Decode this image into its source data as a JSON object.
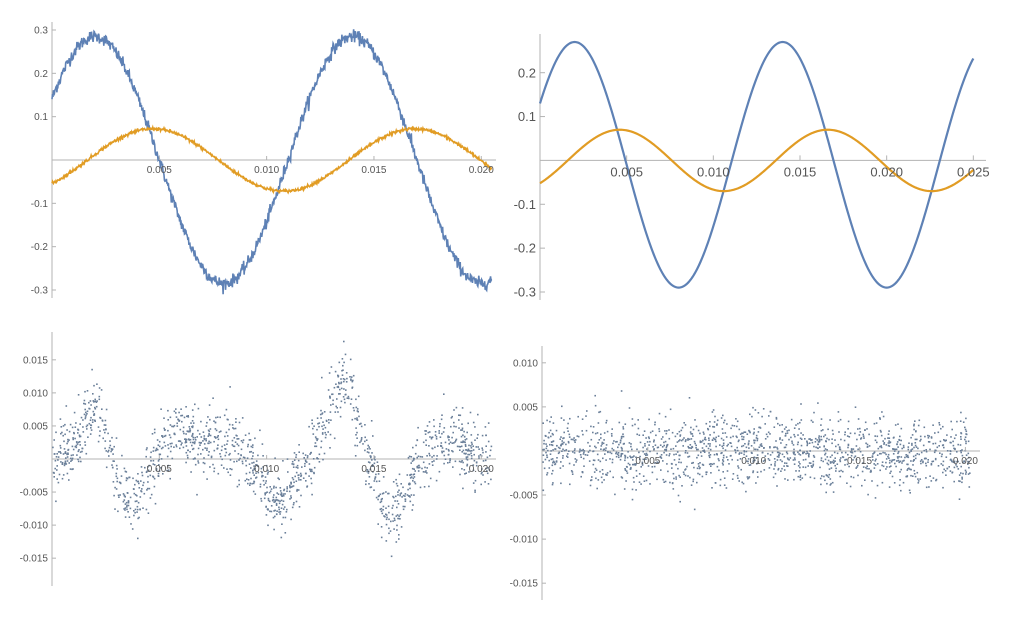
{
  "colors": {
    "blue": "#5e81b5",
    "orange": "#e19c24",
    "axis": "#b3b3b3",
    "text": "#555555",
    "points": "#6a7f99"
  },
  "chart_data": [
    {
      "type": "line",
      "xlim": [
        0,
        0.0205
      ],
      "ylim": [
        -0.3,
        0.3
      ],
      "x_ticks": [
        "0.005",
        "0.010",
        "0.015",
        "0.020"
      ],
      "y_ticks": [
        "0.3",
        "0.2",
        "0.1",
        "-0.1",
        "-0.2",
        "-0.3"
      ],
      "series": [
        {
          "color": "#5e81b5",
          "noisy": true,
          "amplitude": 0.285,
          "period": 0.012,
          "peak_x": 0.002,
          "x_range": [
            0,
            0.0205
          ]
        },
        {
          "color": "#e19c24",
          "noisy": true,
          "amplitude": 0.072,
          "period": 0.0122,
          "peak_x": 0.0047,
          "x_range": [
            0,
            0.0205
          ]
        }
      ]
    },
    {
      "type": "line",
      "xlim": [
        0,
        0.0255
      ],
      "ylim": [
        -0.3,
        0.27
      ],
      "x_ticks": [
        "0.005",
        "0.010",
        "0.015",
        "0.020",
        "0.025"
      ],
      "y_ticks": [
        "0.2",
        "0.1",
        "-0.1",
        "-0.2",
        "-0.3"
      ],
      "series": [
        {
          "color": "#5e81b5",
          "noisy": false,
          "amplitude": 0.28,
          "period": 0.012,
          "peak_x": 0.002,
          "offset": -0.01,
          "x_range": [
            0,
            0.025
          ]
        },
        {
          "color": "#e19c24",
          "noisy": false,
          "amplitude": 0.07,
          "period": 0.012,
          "peak_x": 0.0046,
          "x_range": [
            0,
            0.025
          ]
        }
      ]
    },
    {
      "type": "scatter",
      "xlim": [
        0,
        0.0205
      ],
      "ylim": [
        -0.018,
        0.018
      ],
      "x_ticks": [
        "0.005",
        "0.010",
        "0.015",
        "0.020"
      ],
      "y_ticks": [
        "0.015",
        "0.010",
        "0.005",
        "-0.005",
        "-0.010",
        "-0.015"
      ],
      "series": [
        {
          "color": "#6a7f99",
          "n_points": 1500,
          "x_range": [
            0,
            0.0205
          ],
          "trend_peaks": [
            {
              "x": 0.002,
              "y": 0.008
            },
            {
              "x": 0.0035,
              "y": -0.007
            },
            {
              "x": 0.006,
              "y": 0.004
            },
            {
              "x": 0.008,
              "y": 0.003
            },
            {
              "x": 0.0105,
              "y": -0.006
            },
            {
              "x": 0.0135,
              "y": 0.012
            },
            {
              "x": 0.0158,
              "y": -0.008
            },
            {
              "x": 0.0185,
              "y": 0.003
            }
          ],
          "spread": 0.0045
        }
      ]
    },
    {
      "type": "scatter",
      "xlim": [
        0,
        0.0205
      ],
      "ylim": [
        -0.016,
        0.011
      ],
      "x_ticks": [
        "0.005",
        "0.010",
        "0.015",
        "0.020"
      ],
      "y_ticks": [
        "0.010",
        "0.005",
        "-0.005",
        "-0.010",
        "-0.015"
      ],
      "series": [
        {
          "color": "#6a7f99",
          "n_points": 1500,
          "x_range": [
            0,
            0.0202
          ],
          "trend_peaks": [],
          "spread": 0.0035
        }
      ]
    }
  ]
}
